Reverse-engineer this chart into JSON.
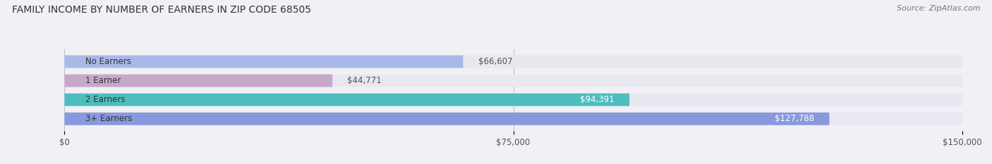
{
  "title": "FAMILY INCOME BY NUMBER OF EARNERS IN ZIP CODE 68505",
  "source": "Source: ZipAtlas.com",
  "categories": [
    "No Earners",
    "1 Earner",
    "2 Earners",
    "3+ Earners"
  ],
  "values": [
    66607,
    44771,
    94391,
    127788
  ],
  "bar_colors": [
    "#a8b8e8",
    "#c8a8c8",
    "#4dbdbd",
    "#8899dd"
  ],
  "label_colors": [
    "#555555",
    "#555555",
    "#ffffff",
    "#ffffff"
  ],
  "max_value": 150000,
  "x_ticks": [
    0,
    75000,
    150000
  ],
  "x_tick_labels": [
    "$0",
    "$75,000",
    "$150,000"
  ],
  "bg_color": "#f0f0f5",
  "bar_bg_color": "#e8e8f0",
  "figsize": [
    14.06,
    2.33
  ],
  "dpi": 100
}
